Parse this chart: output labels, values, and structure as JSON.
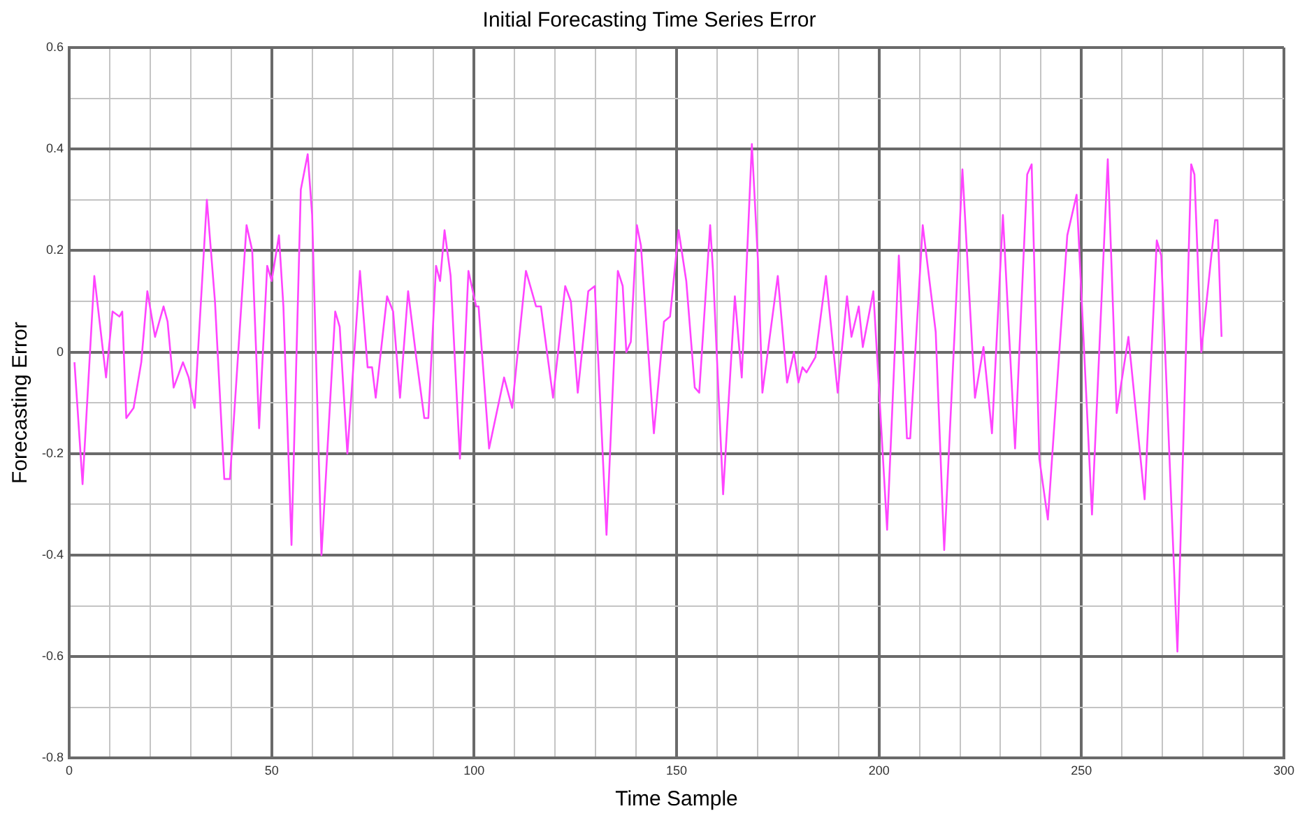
{
  "chart_data": {
    "type": "line",
    "title": "Initial Forecasting Time Series Error",
    "xlabel": "Time Sample",
    "ylabel": "Forecasting Error",
    "xlim": [
      0,
      300
    ],
    "ylim": [
      -0.8,
      0.6
    ],
    "xticks": [
      0,
      {
        "value": 10,
        "label": null
      },
      {
        "value": 20,
        "label": null
      },
      {
        "value": 30,
        "label": null
      },
      {
        "value": 40,
        "label": null
      },
      50,
      {
        "value": 60,
        "label": null
      },
      {
        "value": 70,
        "label": null
      },
      {
        "value": 80,
        "label": null
      },
      {
        "value": 90,
        "label": null
      },
      100,
      {
        "value": 110,
        "label": null
      },
      {
        "value": 120,
        "label": null
      },
      {
        "value": 130,
        "label": null
      },
      {
        "value": 140,
        "label": null
      },
      150,
      {
        "value": 160,
        "label": null
      },
      {
        "value": 170,
        "label": null
      },
      {
        "value": 180,
        "label": null
      },
      {
        "value": 190,
        "label": null
      },
      200,
      {
        "value": 210,
        "label": null
      },
      {
        "value": 220,
        "label": null
      },
      {
        "value": 230,
        "label": null
      },
      {
        "value": 240,
        "label": null
      },
      250,
      {
        "value": 260,
        "label": null
      },
      {
        "value": 270,
        "label": null
      },
      {
        "value": 280,
        "label": null
      },
      {
        "value": 290,
        "label": null
      },
      300
    ],
    "yticks": [
      -0.8,
      {
        "value": -0.7,
        "label": null
      },
      -0.6,
      {
        "value": -0.5,
        "label": null
      },
      -0.4,
      {
        "value": -0.3,
        "label": null
      },
      -0.2,
      {
        "value": -0.1,
        "label": null
      },
      0,
      {
        "value": 0.1,
        "label": null
      },
      0.2,
      {
        "value": 0.3,
        "label": null
      },
      0.4,
      {
        "value": 0.5,
        "label": null
      },
      0.6
    ],
    "grid": true,
    "marker": "none",
    "line_style": "solid",
    "legend": false,
    "series": [
      {
        "color": "#ff44ff",
        "x": [
          1.3,
          3.3,
          6.2,
          9.1,
          10.7,
          12.4,
          13.1,
          14.1,
          15.9,
          17.8,
          19.3,
          21.2,
          23.3,
          24.3,
          25.8,
          28.1,
          29.5,
          31.0,
          34.0,
          36.0,
          38.3,
          39.7,
          43.8,
          45.2,
          46.9,
          48.9,
          50.0,
          51.8,
          52.9,
          54.9,
          57.2,
          58.9,
          60.0,
          62.3,
          65.7,
          66.8,
          68.7,
          71.8,
          73.7,
          74.8,
          75.7,
          78.5,
          80.0,
          81.7,
          83.7,
          85.7,
          87.7,
          88.7,
          90.6,
          91.6,
          92.7,
          94.2,
          96.5,
          98.6,
          100.5,
          101.1,
          103.7,
          107.4,
          109.4,
          112.8,
          115.3,
          116.5,
          119.5,
          122.5,
          123.9,
          125.6,
          128.2,
          129.8,
          132.7,
          135.5,
          136.7,
          137.6,
          138.7,
          140.2,
          141.2,
          144.4,
          146.9,
          148.4,
          150.5,
          152.4,
          154.5,
          155.6,
          158.3,
          159.0,
          161.5,
          164.4,
          166.1,
          168.6,
          170.1,
          171.2,
          175.0,
          177.3,
          179.0,
          180.1,
          181.1,
          182.1,
          184.3,
          186.9,
          189.8,
          192.1,
          193.2,
          195.0,
          196.0,
          198.6,
          202.0,
          204.9,
          206.9,
          207.7,
          210.8,
          214.0,
          216.1,
          220.6,
          223.7,
          225.8,
          227.9,
          230.6,
          233.6,
          236.6,
          237.7,
          239.6,
          241.7,
          246.5,
          248.8,
          252.6,
          256.5,
          258.7,
          261.6,
          265.6,
          268.6,
          269.7,
          273.7,
          277.1,
          277.9,
          279.6,
          283.0,
          283.6,
          284.6
        ],
        "values": [
          -0.02,
          -0.26,
          0.15,
          -0.05,
          0.08,
          0.07,
          0.08,
          -0.13,
          -0.11,
          -0.02,
          0.12,
          0.03,
          0.09,
          0.06,
          -0.07,
          -0.02,
          -0.05,
          -0.11,
          0.3,
          0.1,
          -0.25,
          -0.25,
          0.25,
          0.2,
          -0.15,
          0.17,
          0.14,
          0.23,
          0.09,
          -0.38,
          0.32,
          0.39,
          0.27,
          -0.4,
          0.08,
          0.05,
          -0.2,
          0.16,
          -0.03,
          -0.03,
          -0.09,
          0.11,
          0.08,
          -0.09,
          0.12,
          -0.01,
          -0.13,
          -0.13,
          0.17,
          0.14,
          0.24,
          0.15,
          -0.21,
          0.16,
          0.09,
          0.09,
          -0.19,
          -0.05,
          -0.11,
          0.16,
          0.09,
          0.09,
          -0.09,
          0.13,
          0.1,
          -0.08,
          0.12,
          0.13,
          -0.36,
          0.16,
          0.13,
          0.0,
          0.02,
          0.25,
          0.21,
          -0.16,
          0.06,
          0.07,
          0.24,
          0.14,
          -0.07,
          -0.08,
          0.25,
          0.16,
          -0.28,
          0.11,
          -0.05,
          0.41,
          0.18,
          -0.08,
          0.15,
          -0.06,
          0.0,
          -0.06,
          -0.03,
          -0.04,
          -0.01,
          0.15,
          -0.08,
          0.11,
          0.03,
          0.09,
          0.01,
          0.12,
          -0.35,
          0.19,
          -0.17,
          -0.17,
          0.25,
          0.04,
          -0.39,
          0.36,
          -0.09,
          0.01,
          -0.16,
          0.27,
          -0.19,
          0.35,
          0.37,
          -0.21,
          -0.33,
          0.23,
          0.31,
          -0.32,
          0.38,
          -0.12,
          0.03,
          -0.29,
          0.22,
          0.19,
          -0.59,
          0.37,
          0.35,
          0.0,
          0.26,
          0.26,
          0.03
        ]
      }
    ]
  }
}
